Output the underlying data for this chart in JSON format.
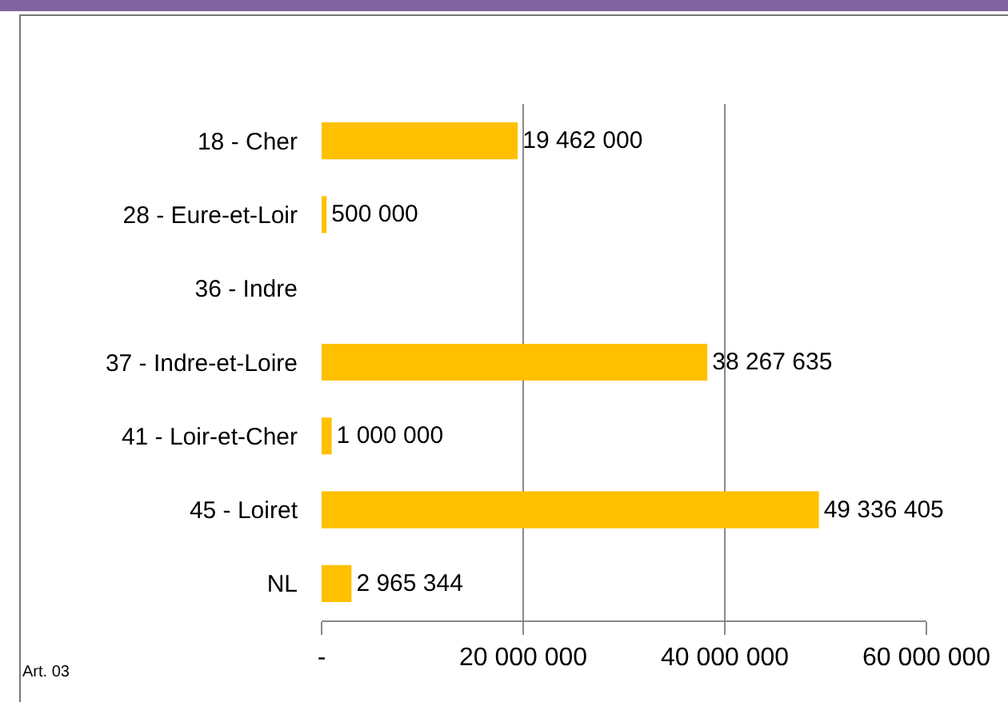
{
  "chart_data": {
    "type": "bar",
    "orientation": "horizontal",
    "categories": [
      "18 - Cher",
      "28 - Eure-et-Loir",
      "36 - Indre",
      "37 - Indre-et-Loire",
      "41 - Loir-et-Cher",
      "45 - Loiret",
      "NL"
    ],
    "values": [
      19462000,
      500000,
      null,
      38267635,
      1000000,
      49336405,
      2965344
    ],
    "value_labels": [
      "19 462 000",
      "500 000",
      null,
      "38 267 635",
      "1 000 000",
      "49 336 405",
      "2 965 344"
    ],
    "color": "#ffc000",
    "xlim": [
      0,
      60000000
    ],
    "xticks": [
      {
        "value": 0,
        "label": "-"
      },
      {
        "value": 20000000,
        "label": "20 000 000"
      },
      {
        "value": 40000000,
        "label": "40 000 000"
      },
      {
        "value": 60000000,
        "label": "60 000 000"
      }
    ],
    "grid": "x",
    "annotations": [
      "Art. 03"
    ]
  }
}
